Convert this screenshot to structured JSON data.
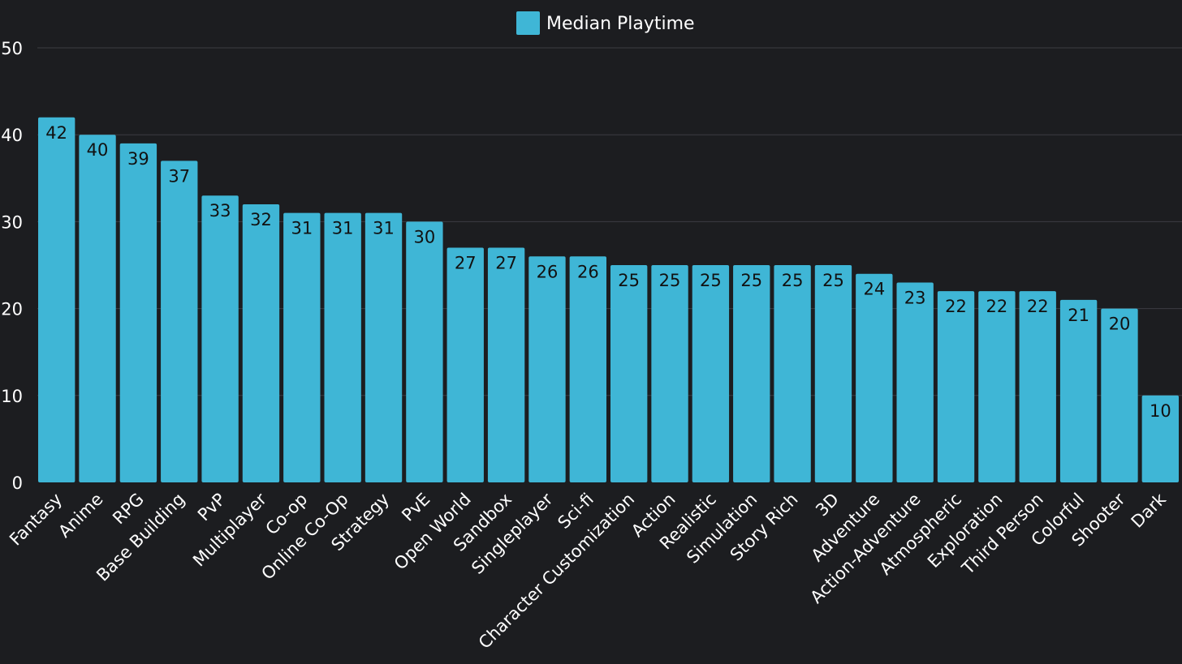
{
  "chart_data": {
    "type": "bar",
    "categories": [
      "Fantasy",
      "Anime",
      "RPG",
      "Base Building",
      "PvP",
      "Multiplayer",
      "Co-op",
      "Online Co-Op",
      "Strategy",
      "PvE",
      "Open World",
      "Sandbox",
      "Singleplayer",
      "Sci-fi",
      "Character Customization",
      "Action",
      "Realistic",
      "Simulation",
      "Story Rich",
      "3D",
      "Adventure",
      "Action-Adventure",
      "Atmospheric",
      "Exploration",
      "Third Person",
      "Colorful",
      "Shooter",
      "Dark"
    ],
    "series": [
      {
        "name": "Median Playtime",
        "values": [
          42,
          40,
          39,
          37,
          33,
          32,
          31,
          31,
          31,
          30,
          27,
          27,
          26,
          26,
          25,
          25,
          25,
          25,
          25,
          25,
          24,
          23,
          22,
          22,
          22,
          21,
          20,
          10
        ]
      }
    ],
    "ylim": [
      0,
      50
    ],
    "yticks": [
      0,
      10,
      20,
      30,
      40,
      50
    ],
    "grid": true,
    "legend_position": "top-center",
    "data_labels": true,
    "colors": {
      "bar": "#3fb6d6",
      "background": "#1c1d20",
      "grid": "#3b3d42",
      "text": "#ffffff",
      "value_text": "#111111"
    }
  }
}
